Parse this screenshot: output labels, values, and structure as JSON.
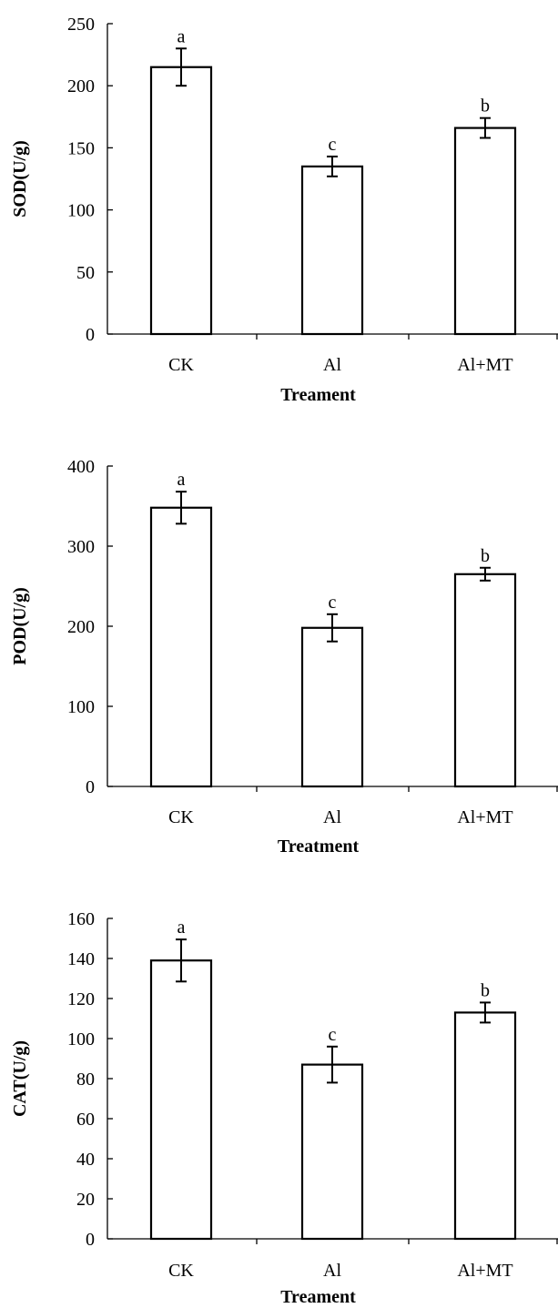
{
  "chart_data": [
    {
      "type": "bar",
      "categories": [
        "CK",
        "Al",
        "Al+MT"
      ],
      "values": [
        215,
        135,
        166
      ],
      "errors": [
        15,
        8,
        8
      ],
      "significance": [
        "a",
        "c",
        "b"
      ],
      "xlabel": "Treament",
      "ylabel": "SOD(U/g)",
      "ylim": [
        0,
        250
      ],
      "yticks": [
        0,
        50,
        100,
        150,
        200,
        250
      ],
      "grid": false
    },
    {
      "type": "bar",
      "categories": [
        "CK",
        "Al",
        "Al+MT"
      ],
      "values": [
        348,
        198,
        265
      ],
      "errors": [
        20,
        17,
        8
      ],
      "significance": [
        "a",
        "c",
        "b"
      ],
      "xlabel": "Treatment",
      "ylabel": "POD(U/g)",
      "ylim": [
        0,
        400
      ],
      "yticks": [
        0,
        100,
        200,
        300,
        400
      ],
      "grid": false
    },
    {
      "type": "bar",
      "categories": [
        "CK",
        "Al",
        "Al+MT"
      ],
      "values": [
        139,
        87,
        113
      ],
      "errors": [
        10.5,
        9,
        5
      ],
      "significance": [
        "a",
        "c",
        "b"
      ],
      "xlabel": "Treament",
      "ylabel": "CAT(U/g)",
      "ylim": [
        0,
        160
      ],
      "yticks": [
        0,
        20,
        40,
        60,
        80,
        100,
        120,
        140,
        160
      ],
      "grid": false
    }
  ]
}
